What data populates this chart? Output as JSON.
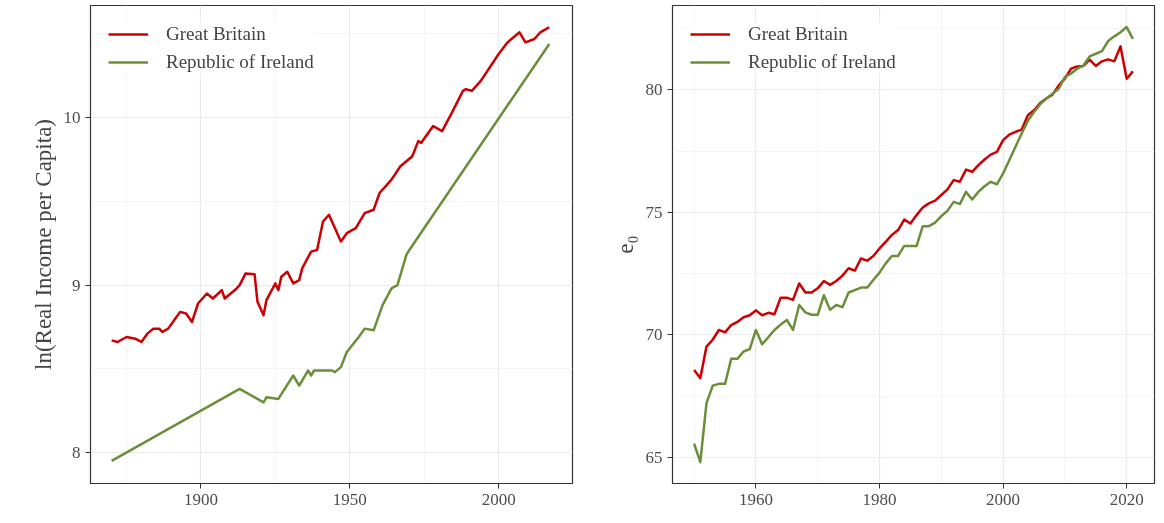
{
  "chart_data": [
    {
      "type": "line",
      "ylabel": "ln(Real Income per Capita)",
      "xlim": [
        1862.9,
        2024.8
      ],
      "ylim": [
        7.815,
        10.67
      ],
      "xticks": [
        1900,
        1950,
        2000
      ],
      "yticks": [
        8,
        9,
        10
      ],
      "grid": true,
      "legend": "top left",
      "line_style": "solid",
      "series": [
        {
          "name": "Great Britain",
          "color": "#cc0000",
          "x": [
            1870,
            1872,
            1875,
            1878,
            1880,
            1882,
            1884,
            1886,
            1887,
            1889,
            1891,
            1893,
            1895,
            1897,
            1899,
            1902,
            1904,
            1907,
            1908,
            1912,
            1913,
            1915,
            1918,
            1919,
            1921,
            1922,
            1925,
            1926,
            1927,
            1929,
            1931,
            1933,
            1934,
            1937,
            1939,
            1941,
            1943,
            1947,
            1949,
            1952,
            1955,
            1958,
            1960,
            1964,
            1967,
            1971,
            1973,
            1974,
            1978,
            1981,
            1984,
            1988,
            1989,
            1991,
            1994,
            2000,
            2003,
            2007,
            2009,
            2012,
            2014,
            2017
          ],
          "values": [
            8.67,
            8.66,
            8.69,
            8.68,
            8.66,
            8.71,
            8.74,
            8.74,
            8.72,
            8.74,
            8.79,
            8.84,
            8.83,
            8.78,
            8.89,
            8.95,
            8.92,
            8.97,
            8.92,
            8.98,
            9.0,
            9.07,
            9.065,
            8.9,
            8.82,
            8.91,
            9.01,
            8.97,
            9.05,
            9.08,
            9.01,
            9.03,
            9.1,
            9.2,
            9.21,
            9.38,
            9.42,
            9.26,
            9.31,
            9.34,
            9.43,
            9.45,
            9.55,
            9.63,
            9.71,
            9.77,
            9.86,
            9.85,
            9.95,
            9.92,
            10.02,
            10.16,
            10.17,
            10.16,
            10.22,
            10.38,
            10.45,
            10.51,
            10.45,
            10.47,
            10.51,
            10.54
          ]
        },
        {
          "name": "Republic of Ireland",
          "color": "#6b8e3a",
          "x": [
            1870,
            1913,
            1921,
            1922,
            1926,
            1931,
            1933,
            1936,
            1937,
            1938,
            1944,
            1945,
            1947,
            1949,
            1953,
            1955,
            1958,
            1961,
            1964,
            1966,
            1969,
            1970,
            2017
          ],
          "values": [
            7.95,
            8.38,
            8.3,
            8.33,
            8.32,
            8.46,
            8.4,
            8.49,
            8.46,
            8.49,
            8.49,
            8.48,
            8.51,
            8.6,
            8.69,
            8.74,
            8.73,
            8.88,
            8.98,
            9.0,
            9.18,
            9.21,
            10.44
          ]
        }
      ]
    },
    {
      "type": "line",
      "ylabel": "e₀",
      "xlim": [
        1946.5,
        2024.5
      ],
      "ylim": [
        63.93,
        83.45
      ],
      "xticks": [
        1960,
        1980,
        2000,
        2020
      ],
      "yticks": [
        65,
        70,
        75,
        80
      ],
      "grid": true,
      "legend": "top left",
      "line_style": "solid",
      "x": [
        1950,
        1951,
        1952,
        1953,
        1954,
        1955,
        1956,
        1957,
        1958,
        1959,
        1960,
        1961,
        1962,
        1963,
        1964,
        1965,
        1966,
        1967,
        1968,
        1969,
        1970,
        1971,
        1972,
        1973,
        1974,
        1975,
        1976,
        1977,
        1978,
        1979,
        1980,
        1981,
        1982,
        1983,
        1984,
        1985,
        1986,
        1987,
        1988,
        1989,
        1990,
        1991,
        1992,
        1993,
        1994,
        1995,
        1996,
        1997,
        1998,
        1999,
        2000,
        2001,
        2002,
        2003,
        2004,
        2005,
        2006,
        2007,
        2008,
        2009,
        2010,
        2011,
        2012,
        2013,
        2014,
        2015,
        2016,
        2017,
        2018,
        2019,
        2020,
        2021
      ],
      "series": [
        {
          "name": "Great Britain",
          "color": "#cc0000",
          "values": [
            68.57,
            68.23,
            69.52,
            69.8,
            70.2,
            70.1,
            70.4,
            70.53,
            70.72,
            70.8,
            71.0,
            70.8,
            70.9,
            70.84,
            71.52,
            71.52,
            71.43,
            72.1,
            71.73,
            71.73,
            71.9,
            72.2,
            72.04,
            72.2,
            72.42,
            72.72,
            72.62,
            73.12,
            73.03,
            73.22,
            73.53,
            73.8,
            74.08,
            74.28,
            74.71,
            74.55,
            74.89,
            75.2,
            75.37,
            75.48,
            75.71,
            75.94,
            76.32,
            76.25,
            76.75,
            76.66,
            76.93,
            77.16,
            77.36,
            77.47,
            77.95,
            78.18,
            78.29,
            78.38,
            78.97,
            79.17,
            79.47,
            79.65,
            79.81,
            80.19,
            80.46,
            80.87,
            80.96,
            80.98,
            81.24,
            80.98,
            81.17,
            81.25,
            81.17,
            81.78,
            80.46,
            80.76
          ]
        },
        {
          "name": "Republic of Ireland",
          "color": "#6b8e3a",
          "values": [
            65.56,
            64.8,
            67.21,
            67.92,
            68.0,
            68.0,
            69.02,
            69.02,
            69.32,
            69.42,
            70.2,
            69.62,
            69.9,
            70.2,
            70.42,
            70.61,
            70.2,
            71.22,
            70.92,
            70.82,
            70.82,
            71.62,
            71.02,
            71.22,
            71.13,
            71.73,
            71.83,
            71.93,
            71.93,
            72.24,
            72.54,
            72.92,
            73.22,
            73.22,
            73.63,
            73.63,
            73.63,
            74.44,
            74.44,
            74.58,
            74.85,
            75.07,
            75.43,
            75.34,
            75.84,
            75.53,
            75.84,
            76.07,
            76.25,
            76.15,
            76.59,
            77.13,
            77.68,
            78.22,
            78.74,
            79.1,
            79.42,
            79.65,
            79.85,
            80.05,
            80.53,
            80.67,
            80.87,
            81.0,
            81.37,
            81.48,
            81.59,
            82.0,
            82.19,
            82.36,
            82.57,
            82.09
          ]
        }
      ]
    }
  ]
}
